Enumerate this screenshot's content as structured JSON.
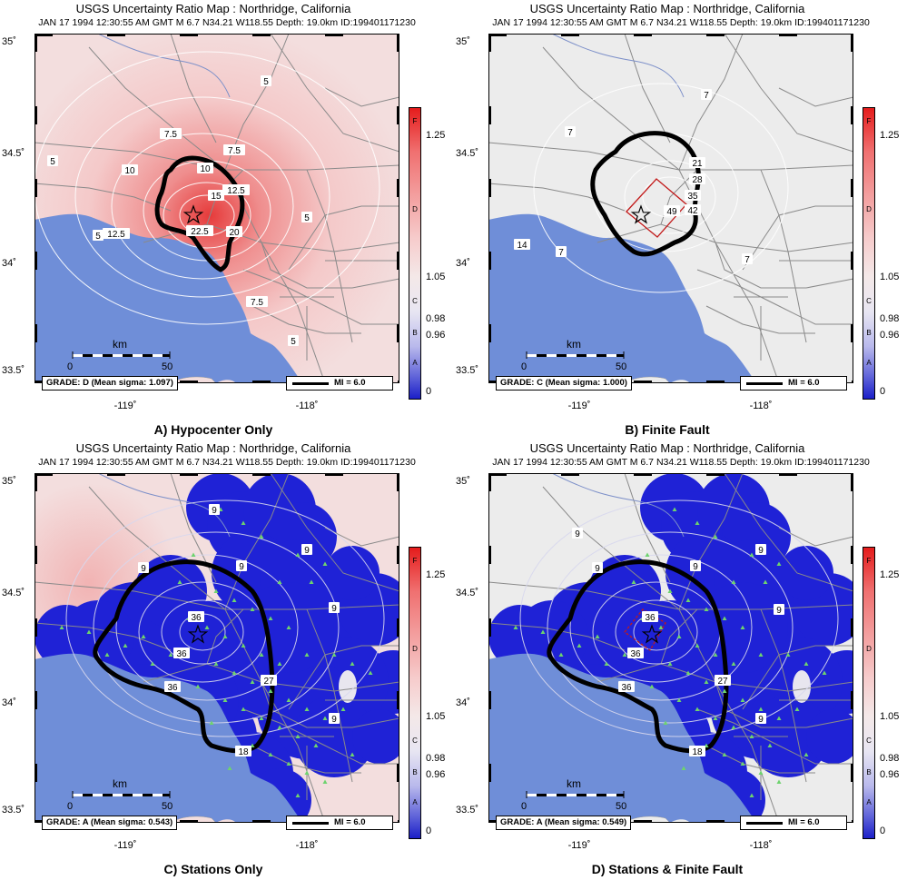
{
  "map_title": "USGS Uncertainty Ratio Map : Northridge, California",
  "event_info": "JAN 17 1994 12:30:55 AM GMT    M 6.7    N34.21 W118.55    Depth: 19.0km    ID:199401171230",
  "lat_labels": [
    "35˚",
    "34.5˚",
    "34˚",
    "33.5˚"
  ],
  "lon_labels": [
    "-119˚",
    "-118˚"
  ],
  "scale": {
    "title": "km",
    "start": "0",
    "end": "50"
  },
  "colorbar": {
    "ticks": [
      "1.25",
      "1.05",
      "0.98",
      "0.96",
      "0"
    ],
    "grades": [
      "F",
      "D",
      "C",
      "B",
      "A"
    ],
    "colors": {
      "high": "#e51c1c",
      "mid": "#f4e8e8",
      "low": "#1b1fc8"
    }
  },
  "mi_label": "MI = 6.0",
  "colors": {
    "ocean": "#6f8ed8",
    "land_pink": "#f3dede",
    "land_gray": "#ececec",
    "station_blue": "#1f22d6",
    "station": "#6ed36e",
    "fault": "#c21a1a"
  },
  "panels": [
    {
      "caption": "A) Hypocenter Only",
      "grade": "GRADE: D (Mean sigma: 1.097)",
      "contour_labels": [
        "5",
        "5",
        "5",
        "5",
        "7.5",
        "7.5",
        "7.5",
        "10",
        "10",
        "12.5",
        "12.5",
        "15",
        "20",
        "22.5",
        "5"
      ]
    },
    {
      "caption": "B) Finite Fault",
      "grade": "GRADE: C (Mean sigma: 1.000)",
      "contour_labels": [
        "7",
        "7",
        "7",
        "7",
        "21",
        "28",
        "35",
        "42",
        "49",
        "14"
      ]
    },
    {
      "caption": "C) Stations Only",
      "grade": "GRADE: A (Mean sigma: 0.543)",
      "contour_labels": [
        "9",
        "9",
        "9",
        "9",
        "9",
        "36",
        "36",
        "36",
        "18",
        "27",
        "9"
      ]
    },
    {
      "caption": "D) Stations & Finite Fault",
      "grade": "GRADE: A (Mean sigma: 0.549)",
      "contour_labels": [
        "9",
        "9",
        "9",
        "9",
        "9",
        "36",
        "36",
        "36",
        "18",
        "27",
        "9"
      ]
    }
  ]
}
